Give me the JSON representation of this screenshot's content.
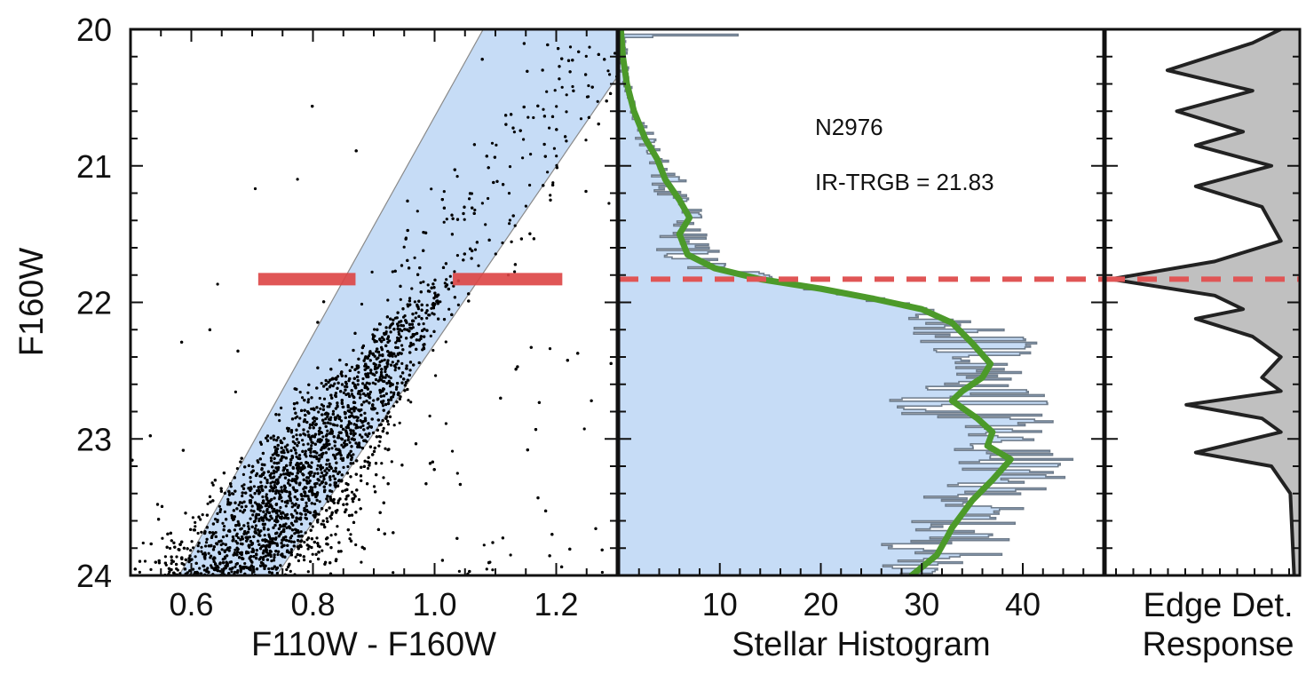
{
  "chart_data": [
    {
      "type": "scatter",
      "xlabel": "F110W - F160W",
      "ylabel": "F160W",
      "xlim": [
        0.5,
        1.3
      ],
      "ylim": [
        24,
        20
      ],
      "xticks": [
        0.6,
        0.8,
        1.0,
        1.2
      ],
      "xtick_labels": [
        "0.6",
        "0.8",
        "1.0",
        "1.2"
      ],
      "yticks": [
        20,
        21,
        22,
        23,
        24
      ],
      "ytick_labels": [
        "20",
        "21",
        "22",
        "23",
        "24"
      ],
      "selection_band": {
        "polygon": [
          [
            0.58,
            24.0
          ],
          [
            0.74,
            24.0
          ],
          [
            1.3,
            20.35
          ],
          [
            1.3,
            20.0
          ],
          [
            1.08,
            20.0
          ]
        ]
      },
      "trgb_marker": {
        "y": 21.83,
        "segments": [
          [
            0.71,
            0.87
          ],
          [
            1.03,
            1.21
          ]
        ],
        "color": "#dd4444"
      },
      "points_note": "dense cloud of individual stars, peak density near color 0.95 at F160W 22.2",
      "colors": {
        "points": "#000000",
        "band": "#c6dcf6",
        "band_edge": "#8a8a8a"
      }
    },
    {
      "type": "line",
      "xlabel": "Stellar Histogram",
      "xlim": [
        0,
        48
      ],
      "ylim": [
        24,
        20
      ],
      "xticks": [
        10,
        20,
        30,
        40
      ],
      "xtick_labels": [
        "10",
        "20",
        "30",
        "40"
      ],
      "annotations": [
        "N2976",
        "IR-TRGB = 21.83"
      ],
      "trgb": 21.83,
      "series": [
        {
          "role": "smoothed",
          "color": "#4c9a2a",
          "points": [
            [
              0.2,
              20.0
            ],
            [
              0.4,
              20.2
            ],
            [
              0.8,
              20.4
            ],
            [
              1.5,
              20.6
            ],
            [
              2.6,
              20.8
            ],
            [
              3.8,
              20.95
            ],
            [
              4.6,
              21.1
            ],
            [
              6.0,
              21.25
            ],
            [
              7.0,
              21.38
            ],
            [
              6.0,
              21.5
            ],
            [
              6.8,
              21.65
            ],
            [
              9.5,
              21.75
            ],
            [
              14,
              21.83
            ],
            [
              20,
              21.9
            ],
            [
              25,
              21.97
            ],
            [
              30,
              22.05
            ],
            [
              33,
              22.15
            ],
            [
              35,
              22.3
            ],
            [
              36.8,
              22.45
            ],
            [
              36,
              22.55
            ],
            [
              34,
              22.65
            ],
            [
              33,
              22.72
            ],
            [
              35.5,
              22.85
            ],
            [
              37,
              22.95
            ],
            [
              36.5,
              23.05
            ],
            [
              38.8,
              23.15
            ],
            [
              37,
              23.3
            ],
            [
              35,
              23.45
            ],
            [
              33,
              23.65
            ],
            [
              32.5,
              23.72
            ],
            [
              31.5,
              23.85
            ],
            [
              29,
              24.0
            ]
          ]
        },
        {
          "role": "histogram",
          "color": "#5a6878",
          "points": [
            [
              0.3,
              20.05
            ],
            [
              1.0,
              20.3
            ],
            [
              2.0,
              20.55
            ],
            [
              4.0,
              20.8
            ],
            [
              5.5,
              21.0
            ],
            [
              8.0,
              21.15
            ],
            [
              9.0,
              21.3
            ],
            [
              8.5,
              21.45
            ],
            [
              10.5,
              21.6
            ],
            [
              13.0,
              21.75
            ],
            [
              18.0,
              21.85
            ],
            [
              26.0,
              21.95
            ],
            [
              36.0,
              22.1
            ],
            [
              42.0,
              22.25
            ],
            [
              44.0,
              22.4
            ],
            [
              40.0,
              22.55
            ],
            [
              44.0,
              22.7
            ],
            [
              45.0,
              22.85
            ],
            [
              43.0,
              23.0
            ],
            [
              46.0,
              23.15
            ],
            [
              45.0,
              23.3
            ],
            [
              42.0,
              23.45
            ],
            [
              40.0,
              23.6
            ],
            [
              41.0,
              23.75
            ],
            [
              38.0,
              23.9
            ],
            [
              30.0,
              24.0
            ]
          ]
        }
      ],
      "colors": {
        "fill": "#c6dcf6",
        "trgb_line": "#e05555"
      }
    },
    {
      "type": "line",
      "xlabel": [
        "Edge Det.",
        "Response"
      ],
      "ylim": [
        24,
        20
      ],
      "trgb": 21.83,
      "series": [
        {
          "role": "edge_response",
          "color": "#222222",
          "fill": "#c0c0c0",
          "points": [
            [
              0.1,
              20.0
            ],
            [
              0.25,
              20.1
            ],
            [
              0.7,
              20.3
            ],
            [
              0.25,
              20.45
            ],
            [
              0.65,
              20.6
            ],
            [
              0.3,
              20.75
            ],
            [
              0.55,
              20.85
            ],
            [
              0.15,
              21.0
            ],
            [
              0.55,
              21.15
            ],
            [
              0.2,
              21.3
            ],
            [
              0.1,
              21.55
            ],
            [
              0.45,
              21.7
            ],
            [
              1.0,
              21.83
            ],
            [
              0.45,
              21.95
            ],
            [
              0.3,
              22.05
            ],
            [
              0.55,
              22.12
            ],
            [
              0.25,
              22.25
            ],
            [
              0.1,
              22.4
            ],
            [
              0.2,
              22.55
            ],
            [
              0.1,
              22.65
            ],
            [
              0.6,
              22.75
            ],
            [
              0.2,
              22.85
            ],
            [
              0.1,
              22.95
            ],
            [
              0.55,
              23.1
            ],
            [
              0.15,
              23.2
            ],
            [
              0.05,
              23.4
            ],
            [
              0.03,
              24.0
            ]
          ]
        }
      ],
      "colors": {
        "trgb_line": "#e05555"
      }
    }
  ]
}
